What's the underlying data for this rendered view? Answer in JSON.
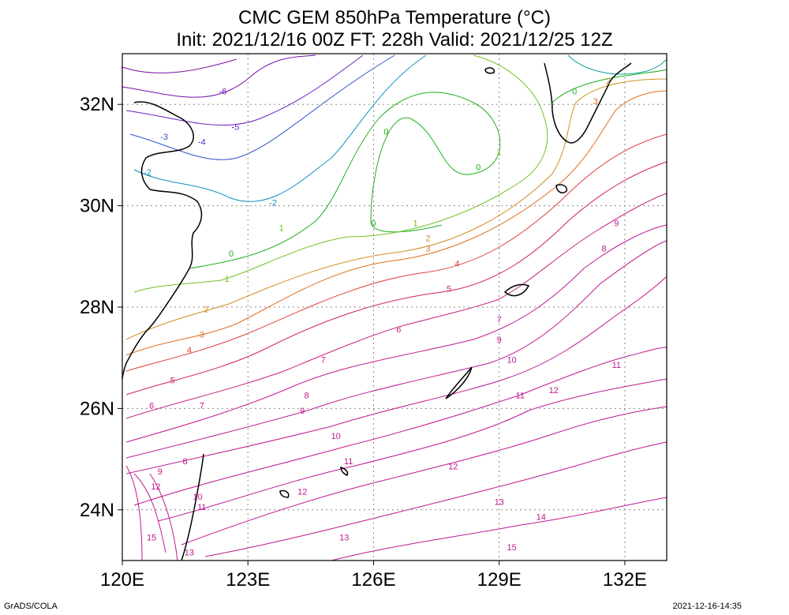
{
  "title": {
    "line1": "CMC GEM 850hPa Temperature (°C)",
    "line2": "Init: 2021/12/16 00Z  FT: 228h  Valid: 2021/12/25 12Z"
  },
  "axes": {
    "lat_ticks": [
      "32N",
      "30N",
      "28N",
      "26N",
      "24N"
    ],
    "lon_ticks": [
      "120E",
      "123E",
      "126E",
      "129E",
      "132E"
    ],
    "lon_range": [
      120,
      133
    ],
    "lat_range": [
      23,
      33
    ]
  },
  "footer": {
    "left": "GrADS/COLA",
    "right": "2021-12-16-14:35"
  },
  "contour_labels": [
    {
      "v": "-6",
      "lon": 122.4,
      "lat": 32.2,
      "c": "#7a10b0"
    },
    {
      "v": "-5",
      "lon": 122.7,
      "lat": 31.5,
      "c": "#6a20c0"
    },
    {
      "v": "-4",
      "lon": 121.9,
      "lat": 31.2,
      "c": "#5a30c8"
    },
    {
      "v": "-3",
      "lon": 121.0,
      "lat": 31.3,
      "c": "#3050d0"
    },
    {
      "v": "-2",
      "lon": 120.6,
      "lat": 30.6,
      "c": "#1090c0"
    },
    {
      "v": "-2",
      "lon": 123.6,
      "lat": 30.0,
      "c": "#1090c0"
    },
    {
      "v": "-1",
      "lon": 131.2,
      "lat": 32.9,
      "c": "#10a0a0"
    },
    {
      "v": "0",
      "lon": 126.3,
      "lat": 31.4,
      "c": "#20b020"
    },
    {
      "v": "0",
      "lon": 128.5,
      "lat": 30.7,
      "c": "#20b020"
    },
    {
      "v": "0",
      "lon": 122.6,
      "lat": 29.0,
      "c": "#20b020"
    },
    {
      "v": "0",
      "lon": 126.0,
      "lat": 29.6,
      "c": "#20b020"
    },
    {
      "v": "0",
      "lon": 130.8,
      "lat": 32.2,
      "c": "#20b020"
    },
    {
      "v": "1",
      "lon": 123.8,
      "lat": 29.5,
      "c": "#70c020"
    },
    {
      "v": "1",
      "lon": 122.5,
      "lat": 28.5,
      "c": "#70c020"
    },
    {
      "v": "1",
      "lon": 127.0,
      "lat": 29.6,
      "c": "#70c020"
    },
    {
      "v": "1",
      "lon": 129.0,
      "lat": 31.0,
      "c": "#70c020"
    },
    {
      "v": "2",
      "lon": 122.0,
      "lat": 27.9,
      "c": "#d09020"
    },
    {
      "v": "2",
      "lon": 127.3,
      "lat": 29.3,
      "c": "#d09020"
    },
    {
      "v": "2",
      "lon": 131.6,
      "lat": 32.4,
      "c": "#d09020"
    },
    {
      "v": "3",
      "lon": 121.9,
      "lat": 27.4,
      "c": "#e07020"
    },
    {
      "v": "3",
      "lon": 127.3,
      "lat": 29.1,
      "c": "#e07020"
    },
    {
      "v": "3",
      "lon": 131.3,
      "lat": 32.0,
      "c": "#e07020"
    },
    {
      "v": "4",
      "lon": 121.6,
      "lat": 27.1,
      "c": "#e04040"
    },
    {
      "v": "4",
      "lon": 128.0,
      "lat": 28.8,
      "c": "#e04040"
    },
    {
      "v": "5",
      "lon": 121.2,
      "lat": 26.5,
      "c": "#d02060"
    },
    {
      "v": "5",
      "lon": 127.8,
      "lat": 28.3,
      "c": "#d02060"
    },
    {
      "v": "6",
      "lon": 120.7,
      "lat": 26.0,
      "c": "#c82080"
    },
    {
      "v": "6",
      "lon": 126.6,
      "lat": 27.5,
      "c": "#c82080"
    },
    {
      "v": "7",
      "lon": 121.9,
      "lat": 26.0,
      "c": "#c01890"
    },
    {
      "v": "7",
      "lon": 124.8,
      "lat": 26.9,
      "c": "#c01890"
    },
    {
      "v": "7",
      "lon": 129.0,
      "lat": 27.7,
      "c": "#c01890"
    },
    {
      "v": "8",
      "lon": 121.5,
      "lat": 24.9,
      "c": "#c01890"
    },
    {
      "v": "8",
      "lon": 124.4,
      "lat": 26.2,
      "c": "#c01890"
    },
    {
      "v": "8",
      "lon": 131.5,
      "lat": 29.1,
      "c": "#c01890"
    },
    {
      "v": "9",
      "lon": 120.9,
      "lat": 24.7,
      "c": "#c01890"
    },
    {
      "v": "9",
      "lon": 124.3,
      "lat": 25.9,
      "c": "#c01890"
    },
    {
      "v": "9",
      "lon": 129.0,
      "lat": 27.3,
      "c": "#c01890"
    },
    {
      "v": "9",
      "lon": 131.8,
      "lat": 29.6,
      "c": "#c01890"
    },
    {
      "v": "10",
      "lon": 125.1,
      "lat": 25.4,
      "c": "#c01890"
    },
    {
      "v": "10",
      "lon": 129.3,
      "lat": 26.9,
      "c": "#c01890"
    },
    {
      "v": "10",
      "lon": 121.8,
      "lat": 24.2,
      "c": "#c01890"
    },
    {
      "v": "11",
      "lon": 125.4,
      "lat": 24.9,
      "c": "#c01890"
    },
    {
      "v": "11",
      "lon": 129.5,
      "lat": 26.2,
      "c": "#c01890"
    },
    {
      "v": "11",
      "lon": 131.8,
      "lat": 26.8,
      "c": "#c01890"
    },
    {
      "v": "11",
      "lon": 121.9,
      "lat": 24.0,
      "c": "#c01890"
    },
    {
      "v": "12",
      "lon": 120.8,
      "lat": 24.4,
      "c": "#c01890"
    },
    {
      "v": "12",
      "lon": 124.3,
      "lat": 24.3,
      "c": "#c01890"
    },
    {
      "v": "12",
      "lon": 127.9,
      "lat": 24.8,
      "c": "#c01890"
    },
    {
      "v": "12",
      "lon": 130.3,
      "lat": 26.3,
      "c": "#c01890"
    },
    {
      "v": "13",
      "lon": 129.0,
      "lat": 24.1,
      "c": "#c01890"
    },
    {
      "v": "13",
      "lon": 125.3,
      "lat": 23.4,
      "c": "#c01890"
    },
    {
      "v": "13",
      "lon": 121.6,
      "lat": 23.1,
      "c": "#c01890"
    },
    {
      "v": "14",
      "lon": 130.0,
      "lat": 23.8,
      "c": "#c01890"
    },
    {
      "v": "15",
      "lon": 120.7,
      "lat": 23.4,
      "c": "#c01890"
    },
    {
      "v": "15",
      "lon": 129.3,
      "lat": 23.2,
      "c": "#c01890"
    }
  ]
}
